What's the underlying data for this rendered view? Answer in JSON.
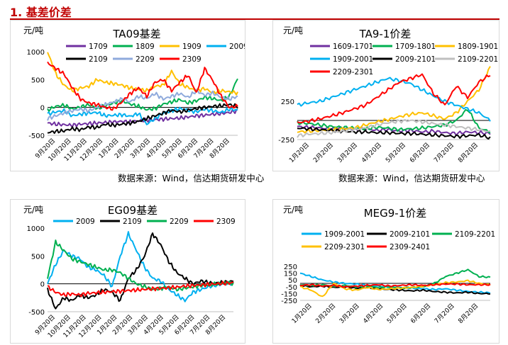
{
  "page": {
    "heading": "1. 基差价差"
  },
  "sources": {
    "left": "数据来源：Wind，信达期货研发中心",
    "right": "数据来源：Wind，信达期货研发中心"
  },
  "chart_data": [
    {
      "id": "ta09",
      "type": "line",
      "title": "TA09基差",
      "ylabel": "元/吨",
      "ylim": [
        -500,
        1000
      ],
      "yticks": [
        -500,
        0,
        500,
        1000
      ],
      "x_tick_labels": [
        "9月20日",
        "10月20日",
        "11月20日",
        "12月20日",
        "1月20日",
        "2月20日",
        "3月20日",
        "4月20日",
        "5月20日",
        "6月20日",
        "7月20日",
        "8月20日"
      ],
      "legend_position": "top",
      "series": [
        {
          "name": "1709",
          "color": "#7030a0",
          "values": [
            -280,
            -300,
            -310,
            -320,
            -300,
            -290,
            -280,
            -270,
            -260,
            -250,
            -260,
            -240,
            -230,
            -220,
            -210,
            -200,
            -190,
            -170,
            -150,
            -140,
            -120,
            -110,
            -90,
            -60
          ]
        },
        {
          "name": "1809",
          "color": "#00b050",
          "values": [
            -50,
            20,
            40,
            -30,
            10,
            50,
            -20,
            30,
            80,
            120,
            60,
            20,
            -40,
            -20,
            60,
            100,
            140,
            80,
            120,
            180,
            160,
            120,
            200,
            520
          ]
        },
        {
          "name": "1909",
          "color": "#ffc000",
          "values": [
            1000,
            600,
            400,
            300,
            350,
            380,
            500,
            450,
            430,
            400,
            350,
            330,
            300,
            380,
            400,
            650,
            420,
            360,
            300,
            340,
            260,
            300,
            280,
            260
          ]
        },
        {
          "name": "2009",
          "color": "#00b0f0",
          "values": [
            -120,
            -80,
            -60,
            -150,
            -120,
            -100,
            -90,
            -150,
            -140,
            -130,
            -160,
            -110,
            -300,
            -200,
            -100,
            -60,
            -20,
            -50,
            -80,
            -30,
            -60,
            -90,
            -30,
            -50
          ]
        },
        {
          "name": "2109",
          "color": "#000000",
          "values": [
            -450,
            -430,
            -420,
            -380,
            -400,
            -350,
            -360,
            -300,
            -320,
            -300,
            -280,
            -250,
            -200,
            -150,
            -100,
            -50,
            -80,
            -50,
            -20,
            0,
            20,
            30,
            50,
            20
          ]
        },
        {
          "name": "2209",
          "color": "#8faadc",
          "values": [
            -200,
            -150,
            -100,
            -60,
            -30,
            -60,
            0,
            50,
            100,
            150,
            100,
            200,
            160,
            250,
            150,
            200,
            250,
            180,
            300,
            220,
            260,
            180,
            150,
            200
          ]
        },
        {
          "name": "2309",
          "color": "#ff0000",
          "values": [
            800,
            700,
            600,
            350,
            150,
            80,
            50,
            0,
            -30,
            100,
            250,
            350,
            200,
            450,
            500,
            300,
            450,
            580,
            260,
            700,
            480,
            200,
            0,
            20
          ]
        }
      ]
    },
    {
      "id": "ta9_1",
      "type": "line",
      "title": "TA9-1价差",
      "ylabel": "元/吨",
      "ylim": [
        -250,
        750
      ],
      "yticks": [
        -250,
        250
      ],
      "x_tick_labels": [
        "1月20日",
        "2月20日",
        "3月20日",
        "4月20日",
        "5月20日",
        "6月20日",
        "7月20日",
        "8月20日"
      ],
      "legend_position": "top",
      "series": [
        {
          "name": "1609-1701",
          "color": "#7030a0",
          "values": [
            -80,
            -90,
            -100,
            -110,
            -100,
            -120,
            -110,
            -130,
            -120,
            -140,
            -130,
            -150,
            -140,
            -160,
            -170,
            -150,
            -160,
            -170
          ]
        },
        {
          "name": "1709-1801",
          "color": "#00b050",
          "values": [
            -30,
            -40,
            -60,
            -80,
            -90,
            -100,
            -110,
            -90,
            -100,
            -120,
            -110,
            -100,
            -80,
            -60,
            0,
            150,
            -100,
            -150
          ]
        },
        {
          "name": "1809-1901",
          "color": "#ffc000",
          "values": [
            -150,
            -140,
            -130,
            -120,
            -110,
            -100,
            -60,
            -20,
            10,
            50,
            80,
            100,
            60,
            20,
            100,
            250,
            400,
            700
          ]
        },
        {
          "name": "1909-2001",
          "color": "#00b0f0",
          "values": [
            200,
            230,
            250,
            300,
            350,
            400,
            450,
            500,
            550,
            520,
            480,
            400,
            320,
            250,
            200,
            150,
            100,
            0
          ]
        },
        {
          "name": "2009-2101",
          "color": "#000000",
          "values": [
            -100,
            -110,
            -120,
            -130,
            -140,
            -150,
            -150,
            -160,
            -160,
            -170,
            -170,
            -180,
            -190,
            -200,
            -210,
            -200,
            -190,
            -230
          ]
        },
        {
          "name": "2109-2201",
          "color": "#bfbfbf",
          "values": [
            -200,
            -180,
            -170,
            -160,
            -140,
            -120,
            -100,
            -60,
            -30,
            -10,
            0,
            -20,
            -40,
            -60,
            -80,
            -100,
            -120,
            -150
          ]
        },
        {
          "name": "2209-2301",
          "color": "#ff0000",
          "values": [
            -30,
            -10,
            20,
            60,
            100,
            150,
            200,
            300,
            400,
            500,
            550,
            600,
            350,
            200,
            450,
            300,
            500,
            600
          ]
        }
      ]
    },
    {
      "id": "eg09",
      "type": "line",
      "title": "EG09基差",
      "ylabel": "元/吨",
      "ylim": [
        -500,
        1000
      ],
      "yticks": [
        -500,
        0,
        500,
        1000
      ],
      "x_tick_labels": [
        "9月20日",
        "10月20日",
        "11月20日",
        "12月20日",
        "1月20日",
        "2月20日",
        "3月20日",
        "4月20日",
        "5月20日",
        "6月20日",
        "7月20日",
        "8月20日"
      ],
      "legend_position": "top",
      "series": [
        {
          "name": "2009",
          "color": "#00b0f0",
          "values": [
            0,
            350,
            600,
            500,
            450,
            300,
            250,
            150,
            -50,
            500,
            900,
            600,
            300,
            100,
            50,
            -100,
            -200,
            -300,
            -150,
            -100,
            -50,
            -20,
            0,
            20
          ]
        },
        {
          "name": "2109",
          "color": "#000000",
          "values": [
            -100,
            -450,
            -250,
            -300,
            -200,
            -250,
            -200,
            -100,
            -150,
            -300,
            100,
            250,
            500,
            900,
            700,
            400,
            200,
            100,
            0,
            50,
            20,
            10,
            30,
            50
          ]
        },
        {
          "name": "2209",
          "color": "#00b050",
          "values": [
            100,
            750,
            600,
            450,
            400,
            350,
            300,
            250,
            250,
            200,
            100,
            0,
            -50,
            -100,
            -80,
            -60,
            -100,
            -80,
            -50,
            -30,
            -20,
            0,
            20,
            10
          ]
        },
        {
          "name": "2309",
          "color": "#ff0000",
          "values": [
            -50,
            -150,
            -200,
            -180,
            -200,
            -170,
            -160,
            -150,
            -140,
            -130,
            -120,
            -110,
            -100,
            -90,
            -80,
            -70,
            -60,
            -40,
            -30,
            -20,
            -10,
            0,
            10,
            20
          ]
        }
      ]
    },
    {
      "id": "meg9_1",
      "type": "line",
      "title": "MEG9-1价差",
      "ylabel": "元/吨",
      "ylim": [
        -250,
        250
      ],
      "yticks": [
        -250,
        -150,
        -50,
        50,
        150,
        250
      ],
      "ytick_labels": [
        "-250",
        "-150",
        "-50",
        "50",
        "150",
        "250"
      ],
      "extra_ytick_labels": [
        "-200",
        "-100",
        "0",
        "100",
        "200"
      ],
      "x_tick_labels": [
        "1月20日",
        "2月20日",
        "3月20日",
        "4月20日",
        "5月20日",
        "6月20日",
        "7月20日",
        "8月20日"
      ],
      "legend_position": "top",
      "series": [
        {
          "name": "1909-2001",
          "color": "#00b0f0",
          "values": [
            150,
            100,
            50,
            20,
            0,
            -10,
            -30,
            -40,
            -50,
            -60,
            -70,
            -80,
            -90,
            -80,
            -100,
            -120,
            -130,
            -140
          ]
        },
        {
          "name": "2009-2101",
          "color": "#000000",
          "values": [
            -30,
            -50,
            -40,
            -60,
            -50,
            -70,
            -60,
            -80,
            -90,
            -100,
            -110,
            -100,
            -120,
            -130,
            -140,
            -130,
            -150,
            -150
          ]
        },
        {
          "name": "2109-2201",
          "color": "#00b050",
          "values": [
            -20,
            -30,
            -20,
            -40,
            -30,
            -50,
            -40,
            -60,
            -50,
            -70,
            -60,
            -50,
            0,
            100,
            150,
            200,
            100,
            90
          ]
        },
        {
          "name": "2209-2301",
          "color": "#ffc000",
          "values": [
            -50,
            -100,
            -200,
            0,
            -80,
            -100,
            -60,
            -90,
            -80,
            -70,
            -60,
            -40,
            -20,
            10,
            20,
            40,
            0,
            -20
          ]
        },
        {
          "name": "2309-2401",
          "color": "#ff0000",
          "values": [
            -30,
            -20,
            -40,
            -30,
            -50,
            -40,
            -30,
            -20,
            -40,
            -30,
            -20,
            -30,
            -20,
            -10,
            -10,
            -20,
            -20,
            -20
          ]
        }
      ]
    }
  ]
}
